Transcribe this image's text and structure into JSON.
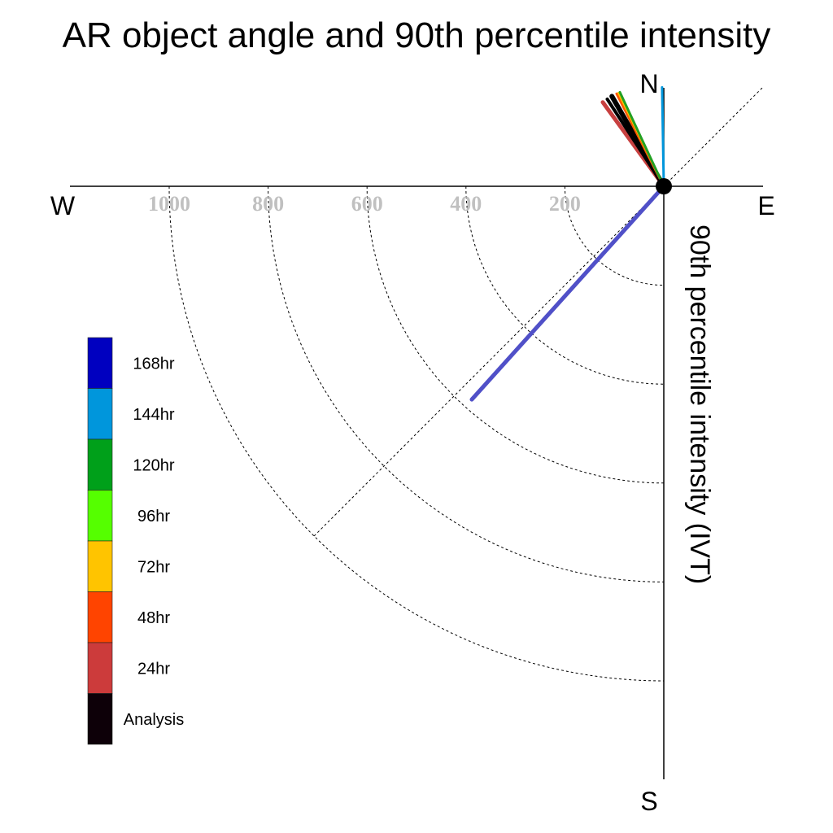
{
  "chart_data": {
    "type": "polar-vector",
    "title": "AR object angle and 90th percentile intensity",
    "ylabel": "90th percentile intensity (IVT)",
    "compass": {
      "north": "N",
      "south": "S",
      "east": "E",
      "west": "W"
    },
    "radial_ticks": [
      "1000",
      "800",
      "600",
      "400",
      "200"
    ],
    "radial_values": [
      1000,
      800,
      600,
      400,
      200
    ],
    "rmax": 1000,
    "grid": true,
    "legend_placement": "left",
    "legend": [
      {
        "label": "168hr",
        "color": "#0000c0"
      },
      {
        "label": "144hr",
        "color": "#0096dc"
      },
      {
        "label": "120hr",
        "color": "#00a01a"
      },
      {
        "label": "96hr",
        "color": "#55ff00"
      },
      {
        "label": "72hr",
        "color": "#ffc400"
      },
      {
        "label": "48hr",
        "color": "#ff4400"
      },
      {
        "label": "24hr",
        "color": "#cc3b3b"
      },
      {
        "label": "Analysis",
        "color": "#0d0008"
      }
    ],
    "vectors": [
      {
        "lead": "24hr",
        "direction_deg": 324,
        "magnitude": 210,
        "color": "#c84040",
        "width": 5
      },
      {
        "lead": "Analysis",
        "direction_deg": 330,
        "magnitude": 210,
        "color": "#000000",
        "width": 6
      },
      {
        "lead": "Analysis",
        "direction_deg": 327,
        "magnitude": 210,
        "color": "#000000",
        "width": 4
      },
      {
        "lead": "48hr",
        "direction_deg": 333,
        "magnitude": 210,
        "color": "#ff5500",
        "width": 3
      },
      {
        "lead": "72hr",
        "direction_deg": 334,
        "magnitude": 210,
        "color": "#ffc400",
        "width": 2
      },
      {
        "lead": "120hr",
        "direction_deg": 335,
        "magnitude": 210,
        "color": "#22a022",
        "width": 3
      },
      {
        "lead": "144hr",
        "direction_deg": 359,
        "magnitude": 200,
        "color": "#0096dc",
        "width": 3
      },
      {
        "lead": "168hr",
        "direction_deg": 222,
        "magnitude": 580,
        "color": "#5050c8",
        "width": 5
      }
    ]
  }
}
